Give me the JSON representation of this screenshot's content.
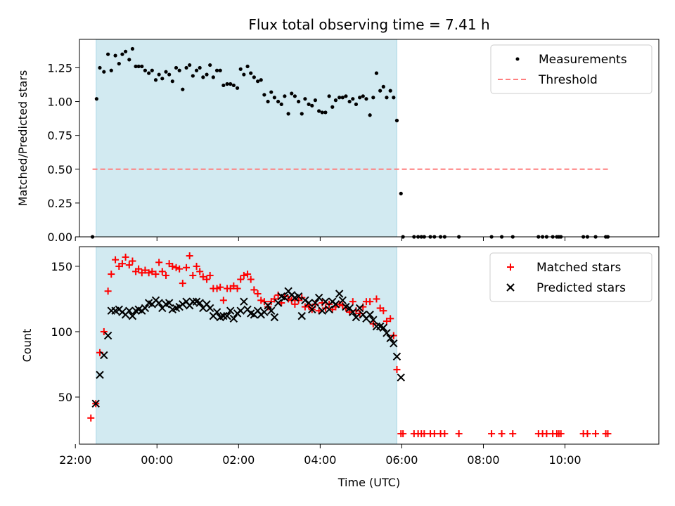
{
  "title": "Flux total observing time = 7.41 h",
  "colors": {
    "measurement": "#000000",
    "threshold": "#ff7f7f",
    "matched": "#ff0000",
    "predicted": "#000000",
    "shade": "#add8e6"
  },
  "chart_data": [
    {
      "type": "scatter",
      "panel": "top",
      "ylabel": "Matched/Predicted stars",
      "xlim": [
        -1.9,
        12.3
      ],
      "ylim": [
        0.0,
        1.46
      ],
      "yticks": [
        0.0,
        0.25,
        0.5,
        0.75,
        1.0,
        1.25
      ],
      "ytick_labels": [
        "0.00",
        "0.25",
        "0.50",
        "0.75",
        "1.00",
        "1.25"
      ],
      "xticks": [
        -2,
        0,
        2,
        4,
        6,
        8,
        10
      ],
      "shaded_span": [
        -1.49,
        5.88
      ],
      "legend": {
        "position": "top-right",
        "measurements": "Measurements",
        "threshold": "Threshold"
      },
      "threshold": {
        "value": 0.5,
        "x_range": [
          -1.58,
          11.1
        ]
      },
      "measurements": {
        "x": [
          -1.58,
          -1.48,
          -1.4,
          -1.3,
          -1.2,
          -1.12,
          -1.02,
          -0.93,
          -0.85,
          -0.77,
          -0.68,
          -0.6,
          -0.52,
          -0.45,
          -0.37,
          -0.29,
          -0.2,
          -0.12,
          -0.03,
          0.05,
          0.13,
          0.22,
          0.3,
          0.38,
          0.47,
          0.55,
          0.63,
          0.72,
          0.8,
          0.88,
          0.97,
          1.05,
          1.13,
          1.22,
          1.3,
          1.38,
          1.47,
          1.55,
          1.63,
          1.72,
          1.8,
          1.88,
          1.97,
          2.05,
          2.13,
          2.22,
          2.3,
          2.38,
          2.47,
          2.55,
          2.63,
          2.72,
          2.8,
          2.88,
          2.97,
          3.05,
          3.13,
          3.22,
          3.3,
          3.38,
          3.47,
          3.55,
          3.63,
          3.72,
          3.8,
          3.88,
          3.97,
          4.05,
          4.13,
          4.22,
          4.3,
          4.38,
          4.47,
          4.55,
          4.63,
          4.72,
          4.8,
          4.88,
          4.97,
          5.05,
          5.13,
          5.22,
          5.3,
          5.38,
          5.47,
          5.55,
          5.63,
          5.72,
          5.8,
          5.88,
          5.98,
          6.03,
          6.3,
          6.4,
          6.48,
          6.55,
          6.7,
          6.8,
          6.95,
          7.05,
          7.4,
          8.2,
          8.45,
          8.72,
          9.35,
          9.45,
          9.55,
          9.7,
          9.8,
          9.85,
          9.9,
          10.45,
          10.55,
          10.75,
          11.0,
          11.05
        ],
        "y": [
          0.0,
          1.02,
          1.25,
          1.22,
          1.35,
          1.23,
          1.34,
          1.28,
          1.35,
          1.37,
          1.31,
          1.39,
          1.26,
          1.26,
          1.26,
          1.23,
          1.21,
          1.23,
          1.16,
          1.2,
          1.17,
          1.22,
          1.2,
          1.15,
          1.25,
          1.23,
          1.09,
          1.25,
          1.27,
          1.19,
          1.23,
          1.25,
          1.18,
          1.2,
          1.27,
          1.18,
          1.23,
          1.23,
          1.12,
          1.13,
          1.13,
          1.12,
          1.1,
          1.24,
          1.2,
          1.26,
          1.21,
          1.18,
          1.15,
          1.16,
          1.05,
          1.0,
          1.07,
          1.03,
          1.0,
          0.98,
          1.04,
          0.91,
          1.06,
          1.04,
          1.0,
          0.91,
          1.02,
          0.98,
          0.97,
          1.01,
          0.93,
          0.92,
          0.92,
          1.04,
          0.96,
          1.01,
          1.03,
          1.03,
          1.04,
          1.0,
          1.02,
          0.98,
          1.03,
          1.04,
          1.02,
          0.9,
          1.03,
          1.21,
          1.08,
          1.11,
          1.03,
          1.08,
          1.03,
          0.86,
          0.32,
          0.0,
          0.0,
          0.0,
          0.0,
          0.0,
          0.0,
          0.0,
          0.0,
          0.0,
          0.0,
          0.0,
          0.0,
          0.0,
          0.0,
          0.0,
          0.0,
          0.0,
          0.0,
          0.0,
          0.0,
          0.0,
          0.0,
          0.0,
          0.0,
          0.0
        ]
      }
    },
    {
      "type": "scatter",
      "panel": "bottom",
      "xlabel": "Time (UTC)",
      "ylabel": "Count",
      "xlim": [
        -1.9,
        12.3
      ],
      "ylim": [
        14,
        165
      ],
      "yticks": [
        50,
        100,
        150
      ],
      "ytick_labels": [
        "50",
        "100",
        "150"
      ],
      "xticks": [
        -2,
        0,
        2,
        4,
        6,
        8,
        10
      ],
      "xtick_labels": [
        "22:00",
        "00:00",
        "02:00",
        "04:00",
        "06:00",
        "08:00",
        "10:00"
      ],
      "shaded_span": [
        -1.49,
        5.88
      ],
      "legend": {
        "position": "top-right",
        "matched": "Matched stars",
        "predicted": "Predicted stars"
      },
      "matched": {
        "x": [
          -1.62,
          -1.5,
          -1.4,
          -1.3,
          -1.2,
          -1.12,
          -1.02,
          -0.93,
          -0.85,
          -0.77,
          -0.68,
          -0.6,
          -0.52,
          -0.45,
          -0.37,
          -0.29,
          -0.2,
          -0.12,
          -0.03,
          0.05,
          0.13,
          0.22,
          0.3,
          0.38,
          0.47,
          0.55,
          0.63,
          0.72,
          0.8,
          0.88,
          0.97,
          1.05,
          1.13,
          1.22,
          1.3,
          1.38,
          1.47,
          1.55,
          1.63,
          1.72,
          1.8,
          1.88,
          1.97,
          2.05,
          2.13,
          2.22,
          2.3,
          2.38,
          2.47,
          2.55,
          2.63,
          2.72,
          2.8,
          2.88,
          2.97,
          3.05,
          3.13,
          3.22,
          3.3,
          3.38,
          3.47,
          3.55,
          3.63,
          3.72,
          3.8,
          3.88,
          3.97,
          4.05,
          4.13,
          4.22,
          4.3,
          4.38,
          4.47,
          4.55,
          4.63,
          4.72,
          4.8,
          4.88,
          4.97,
          5.05,
          5.13,
          5.22,
          5.3,
          5.38,
          5.47,
          5.55,
          5.63,
          5.72,
          5.8,
          5.88,
          5.98,
          6.03,
          6.3,
          6.4,
          6.48,
          6.55,
          6.7,
          6.8,
          6.95,
          7.05,
          7.4,
          8.2,
          8.45,
          8.72,
          9.35,
          9.45,
          9.55,
          9.7,
          9.8,
          9.85,
          9.9,
          10.45,
          10.55,
          10.75,
          11.0,
          11.05
        ],
        "y": [
          34,
          45,
          84,
          100,
          131,
          144,
          155,
          150,
          152,
          157,
          151,
          154,
          146,
          148,
          145,
          147,
          145,
          146,
          144,
          153,
          146,
          143,
          152,
          150,
          149,
          148,
          137,
          149,
          158,
          143,
          150,
          146,
          142,
          140,
          143,
          133,
          133,
          134,
          124,
          133,
          133,
          135,
          133,
          140,
          143,
          144,
          140,
          132,
          129,
          124,
          123,
          119,
          123,
          125,
          128,
          122,
          127,
          125,
          124,
          121,
          124,
          126,
          119,
          120,
          117,
          121,
          116,
          122,
          118,
          121,
          117,
          119,
          121,
          120,
          118,
          115,
          123,
          116,
          114,
          119,
          123,
          123,
          106,
          125,
          118,
          116,
          108,
          110,
          97,
          71,
          22,
          22,
          22,
          22,
          22,
          22,
          22,
          22,
          22,
          22,
          22,
          22,
          22,
          22,
          22,
          22,
          22,
          22,
          22,
          22,
          22,
          22,
          22,
          22,
          22,
          22
        ]
      },
      "predicted": {
        "x": [
          -1.5,
          -1.4,
          -1.3,
          -1.2,
          -1.12,
          -1.02,
          -0.93,
          -0.85,
          -0.77,
          -0.68,
          -0.6,
          -0.52,
          -0.45,
          -0.37,
          -0.29,
          -0.2,
          -0.12,
          -0.03,
          0.05,
          0.13,
          0.22,
          0.3,
          0.38,
          0.47,
          0.55,
          0.63,
          0.72,
          0.8,
          0.88,
          0.97,
          1.05,
          1.13,
          1.22,
          1.3,
          1.38,
          1.47,
          1.55,
          1.63,
          1.72,
          1.8,
          1.88,
          1.97,
          2.05,
          2.13,
          2.22,
          2.3,
          2.38,
          2.47,
          2.55,
          2.63,
          2.72,
          2.8,
          2.88,
          2.97,
          3.05,
          3.13,
          3.22,
          3.3,
          3.38,
          3.47,
          3.55,
          3.63,
          3.72,
          3.8,
          3.88,
          3.97,
          4.05,
          4.13,
          4.22,
          4.3,
          4.38,
          4.47,
          4.55,
          4.63,
          4.72,
          4.8,
          4.88,
          4.97,
          5.05,
          5.13,
          5.22,
          5.3,
          5.38,
          5.47,
          5.55,
          5.63,
          5.72,
          5.8,
          5.88
        ],
        "y": [
          45,
          67,
          82,
          97,
          116,
          116,
          117,
          115,
          113,
          116,
          112,
          116,
          117,
          116,
          118,
          122,
          121,
          124,
          122,
          118,
          121,
          122,
          117,
          118,
          119,
          121,
          123,
          120,
          123,
          123,
          122,
          118,
          121,
          118,
          112,
          115,
          111,
          112,
          112,
          116,
          110,
          114,
          116,
          123,
          117,
          114,
          113,
          116,
          113,
          115,
          120,
          116,
          111,
          122,
          127,
          126,
          131,
          128,
          126,
          127,
          112,
          124,
          122,
          117,
          122,
          126,
          116,
          123,
          117,
          123,
          121,
          129,
          124,
          119,
          118,
          115,
          111,
          118,
          113,
          110,
          113,
          109,
          104,
          104,
          103,
          99,
          95,
          91,
          81
        ]
      },
      "predicted_extra": {
        "x": [
          5.98
        ],
        "y": [
          65
        ]
      }
    }
  ]
}
